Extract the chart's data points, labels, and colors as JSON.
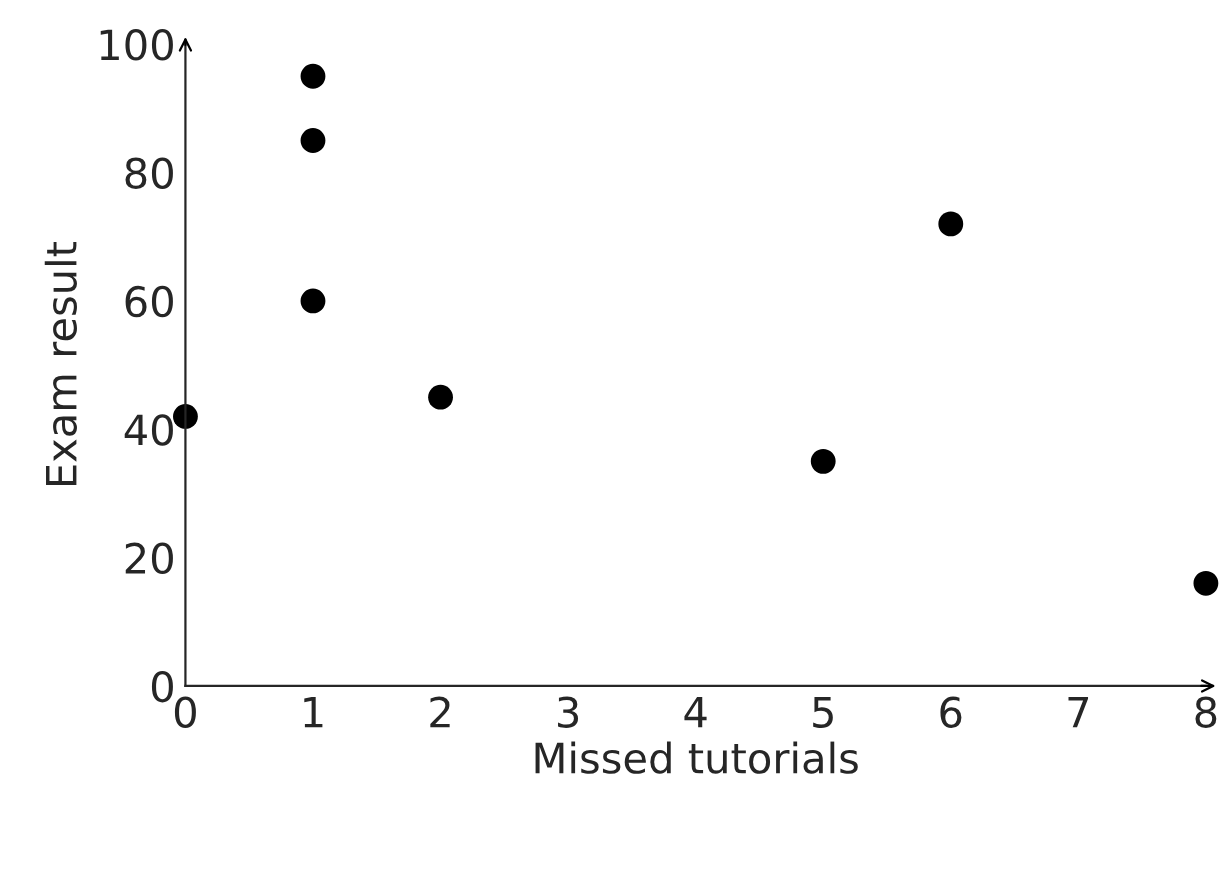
{
  "chart_data": {
    "type": "scatter",
    "xlabel": "Missed tutorials",
    "ylabel": "Exam result",
    "x": [
      0,
      1,
      1,
      1,
      2,
      5,
      6,
      8
    ],
    "series": [
      {
        "color": "#000000",
        "values": [
          42,
          95,
          85,
          60,
          45,
          35,
          72,
          16
        ]
      }
    ],
    "xlim": [
      0,
      8
    ],
    "ylim": [
      0,
      100
    ],
    "xticks": [
      0,
      1,
      2,
      3,
      4,
      5,
      6,
      7,
      8
    ],
    "yticks": [
      0,
      20,
      40,
      60,
      80,
      100
    ],
    "grid": false,
    "legend": false,
    "marker": "circle"
  }
}
